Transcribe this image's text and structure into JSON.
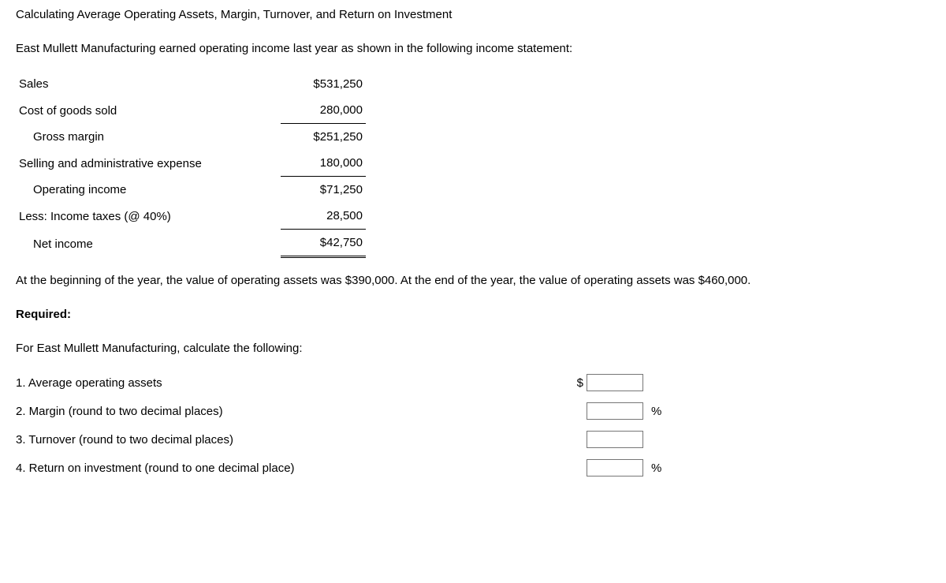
{
  "title": "Calculating Average Operating Assets, Margin, Turnover, and Return on Investment",
  "intro": "East Mullett Manufacturing earned operating income last year as shown in the following income statement:",
  "incomeStatement": {
    "rows": [
      {
        "label": "Sales",
        "value": "$531,250",
        "indent": false,
        "singleTop": false,
        "doubleBottom": false
      },
      {
        "label": "Cost of goods sold",
        "value": "280,000",
        "indent": false,
        "singleTop": false,
        "doubleBottom": false
      },
      {
        "label": "Gross margin",
        "value": "$251,250",
        "indent": true,
        "singleTop": true,
        "doubleBottom": false
      },
      {
        "label": "Selling and administrative expense",
        "value": "180,000",
        "indent": false,
        "singleTop": false,
        "doubleBottom": false
      },
      {
        "label": "Operating income",
        "value": "$71,250",
        "indent": true,
        "singleTop": true,
        "doubleBottom": false
      },
      {
        "label": "Less: Income taxes (@ 40%)",
        "value": "28,500",
        "indent": false,
        "singleTop": false,
        "doubleBottom": false
      },
      {
        "label": "Net income",
        "value": "$42,750",
        "indent": true,
        "singleTop": true,
        "doubleBottom": true
      }
    ]
  },
  "assetsNote": "At the beginning of the year, the value of operating assets was $390,000. At the end of the year, the value of operating assets was $460,000.",
  "requiredLabel": "Required:",
  "calcInstruction": "For East Mullett Manufacturing, calculate the following:",
  "questions": [
    {
      "text": "1. Average operating assets",
      "prefix": "$",
      "suffix": ""
    },
    {
      "text": "2.  Margin (round to two decimal places)",
      "prefix": "",
      "suffix": "%"
    },
    {
      "text": "3. Turnover (round to two decimal places)",
      "prefix": "",
      "suffix": ""
    },
    {
      "text": "4. Return on investment (round to one decimal place)",
      "prefix": "",
      "suffix": "%"
    }
  ]
}
